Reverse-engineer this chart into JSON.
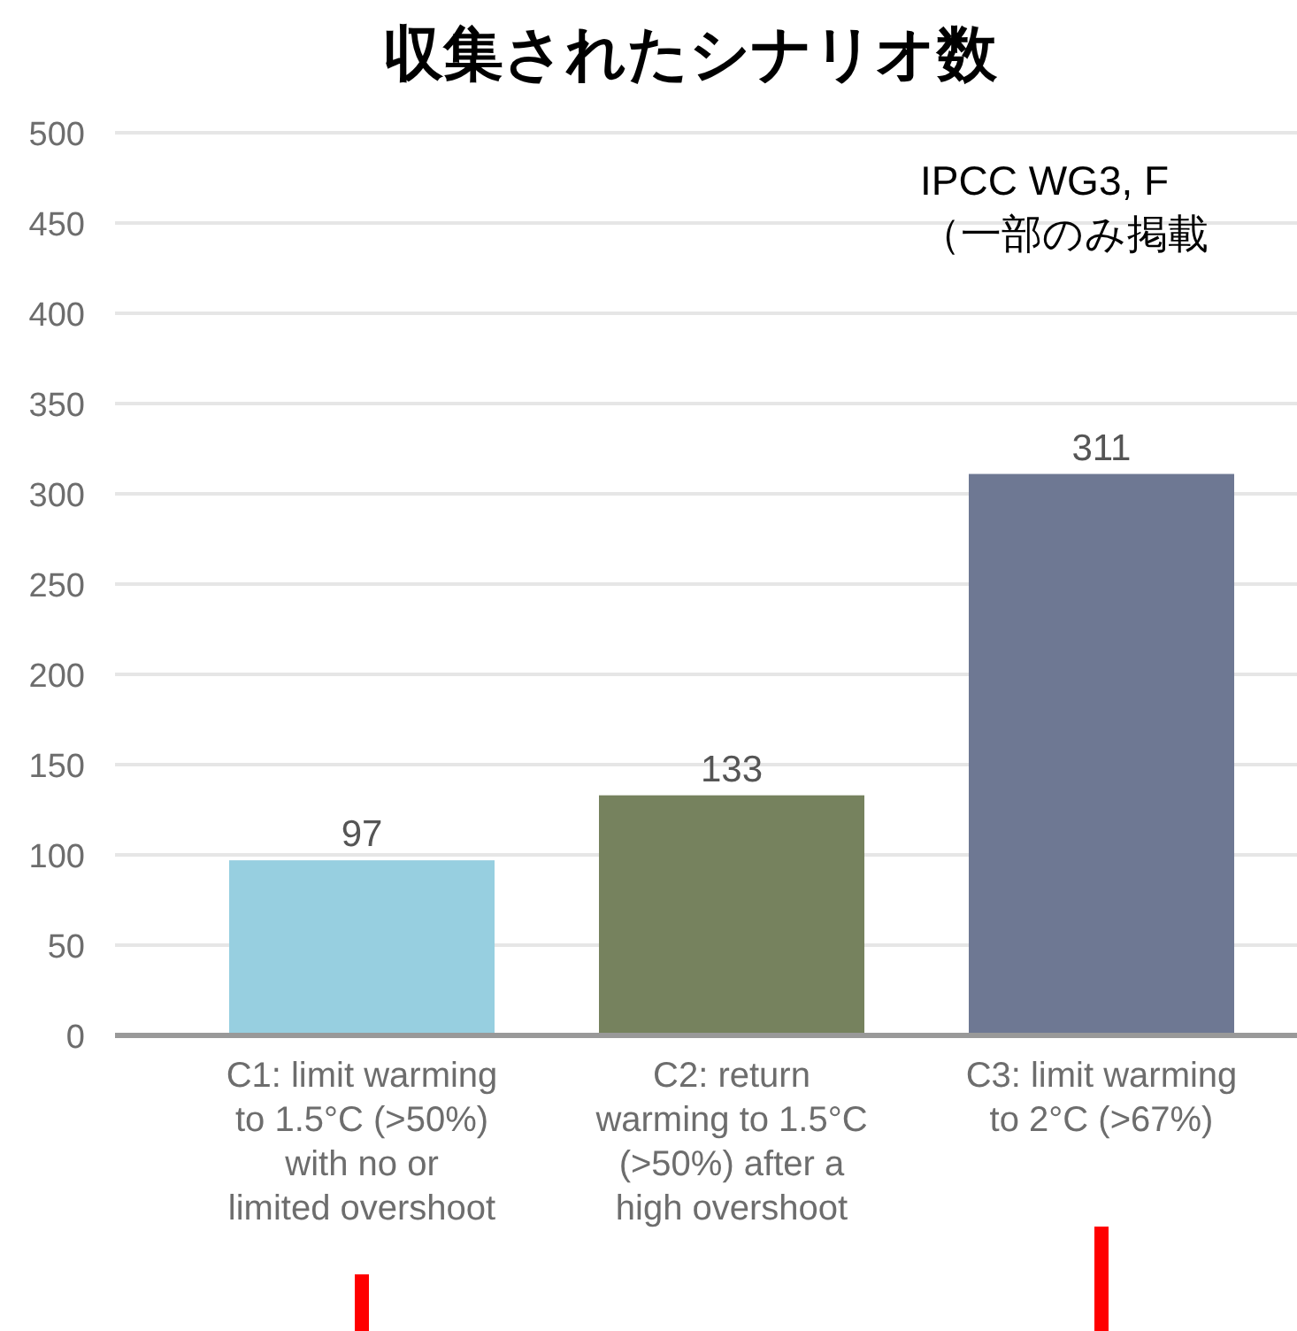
{
  "chart_data": {
    "type": "bar",
    "title": "収集されたシナリオ数",
    "annotations": [
      "IPCC WG3, F",
      "（一部のみ掲載"
    ],
    "categories": [
      "C1: limit warming to 1.5°C (>50%) with no or limited overshoot",
      "C2: return warming to 1.5°C (>50%) after a high overshoot",
      "C3: limit warming to 2°C (>67%)"
    ],
    "values": [
      97,
      133,
      311
    ],
    "colors": [
      "#97cfe0",
      "#76825e",
      "#6e7893"
    ],
    "ylim": [
      0,
      500
    ],
    "yticks": [
      0,
      50,
      100,
      150,
      200,
      250,
      300,
      350,
      400,
      450,
      500
    ],
    "grid": "y",
    "data_labels": true
  }
}
